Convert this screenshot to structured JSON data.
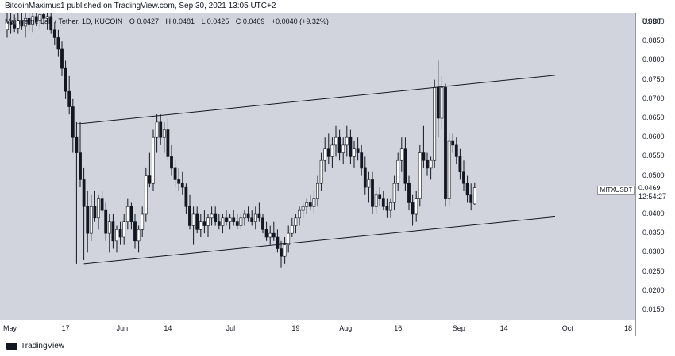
{
  "header": {
    "publish_text": "BitcoinMaximus1 published on TradingView.com, Sep 30, 2021 13:05 UTC+2"
  },
  "legend": {
    "series_title": "Mainframe Lab / Tether, 1D, KUCOIN",
    "open_label": "O",
    "open": "0.0427",
    "high_label": "H",
    "high": "0.0481",
    "low_label": "L",
    "low": "0.0425",
    "close_label": "C",
    "close": "0.0469",
    "change": "+0.0040 (+9.32%)"
  },
  "price_axis": {
    "unit": "USDT",
    "ticks": [
      "0.0900",
      "0.0850",
      "0.0800",
      "0.0750",
      "0.0700",
      "0.0650",
      "0.0600",
      "0.0550",
      "0.0500",
      "0.0450",
      "0.0400",
      "0.0350",
      "0.0300",
      "0.0250",
      "0.0200",
      "0.0150"
    ]
  },
  "time_axis": {
    "ticks": [
      "May",
      "17",
      "Jun",
      "14",
      "Jul",
      "19",
      "Aug",
      "16",
      "Sep",
      "14",
      "Oct",
      "18"
    ]
  },
  "symbol": "MITXUSDT",
  "last_price": {
    "value": "0.0469",
    "countdown": "12:54:27"
  },
  "footer": {
    "brand": "TradingView"
  },
  "colors": {
    "background": "#d1d4dc",
    "candle_up": "#ffffff",
    "candle_down": "#131722",
    "line": "#131722"
  },
  "chart_data": {
    "type": "candlestick",
    "title": "Mainframe Lab / Tether, 1D, KUCOIN",
    "ylabel": "USDT",
    "ylim": [
      0.0125,
      0.0925
    ],
    "x_ticks": [
      {
        "label": "May",
        "day": 0
      },
      {
        "label": "17",
        "day": 16
      },
      {
        "label": "Jun",
        "day": 31
      },
      {
        "label": "14",
        "day": 44
      },
      {
        "label": "Jul",
        "day": 61
      },
      {
        "label": "19",
        "day": 79
      },
      {
        "label": "Aug",
        "day": 92
      },
      {
        "label": "16",
        "day": 107
      },
      {
        "label": "Sep",
        "day": 123
      },
      {
        "label": "14",
        "day": 136
      },
      {
        "label": "Oct",
        "day": 153
      },
      {
        "label": "18",
        "day": 170
      }
    ],
    "candles": [
      [
        0.088,
        0.0925,
        0.086,
        0.09
      ],
      [
        0.09,
        0.0925,
        0.087,
        0.0895
      ],
      [
        0.0895,
        0.092,
        0.0875,
        0.0885
      ],
      [
        0.0885,
        0.0925,
        0.087,
        0.0905
      ],
      [
        0.0905,
        0.0925,
        0.088,
        0.089
      ],
      [
        0.089,
        0.0925,
        0.086,
        0.091
      ],
      [
        0.091,
        0.0925,
        0.088,
        0.0895
      ],
      [
        0.0895,
        0.0925,
        0.0875,
        0.0915
      ],
      [
        0.0915,
        0.0925,
        0.089,
        0.0905
      ],
      [
        0.0905,
        0.0925,
        0.0885,
        0.092
      ],
      [
        0.092,
        0.0925,
        0.0895,
        0.091
      ],
      [
        0.091,
        0.0925,
        0.088,
        0.0915
      ],
      [
        0.0915,
        0.0925,
        0.087,
        0.088
      ],
      [
        0.088,
        0.09,
        0.084,
        0.086
      ],
      [
        0.086,
        0.088,
        0.081,
        0.083
      ],
      [
        0.083,
        0.085,
        0.076,
        0.078
      ],
      [
        0.078,
        0.08,
        0.07,
        0.072
      ],
      [
        0.072,
        0.076,
        0.066,
        0.068
      ],
      [
        0.068,
        0.07,
        0.056,
        0.06
      ],
      [
        0.06,
        0.064,
        0.027,
        0.056
      ],
      [
        0.056,
        0.064,
        0.047,
        0.049
      ],
      [
        0.049,
        0.052,
        0.028,
        0.042
      ],
      [
        0.042,
        0.046,
        0.03,
        0.035
      ],
      [
        0.035,
        0.045,
        0.033,
        0.042
      ],
      [
        0.042,
        0.046,
        0.038,
        0.039
      ],
      [
        0.039,
        0.045,
        0.036,
        0.044
      ],
      [
        0.044,
        0.046,
        0.04,
        0.041
      ],
      [
        0.041,
        0.043,
        0.033,
        0.035
      ],
      [
        0.035,
        0.04,
        0.03,
        0.038
      ],
      [
        0.038,
        0.04,
        0.031,
        0.033
      ],
      [
        0.033,
        0.037,
        0.03,
        0.036
      ],
      [
        0.036,
        0.038,
        0.032,
        0.034
      ],
      [
        0.034,
        0.04,
        0.032,
        0.038
      ],
      [
        0.038,
        0.044,
        0.036,
        0.042
      ],
      [
        0.042,
        0.043,
        0.036,
        0.038
      ],
      [
        0.038,
        0.04,
        0.031,
        0.033
      ],
      [
        0.033,
        0.037,
        0.03,
        0.036
      ],
      [
        0.036,
        0.042,
        0.034,
        0.04
      ],
      [
        0.04,
        0.052,
        0.038,
        0.05
      ],
      [
        0.05,
        0.056,
        0.047,
        0.048
      ],
      [
        0.048,
        0.062,
        0.046,
        0.06
      ],
      [
        0.06,
        0.066,
        0.056,
        0.064
      ],
      [
        0.064,
        0.066,
        0.058,
        0.06
      ],
      [
        0.06,
        0.064,
        0.056,
        0.062
      ],
      [
        0.062,
        0.065,
        0.054,
        0.055
      ],
      [
        0.055,
        0.058,
        0.05,
        0.052
      ],
      [
        0.052,
        0.054,
        0.047,
        0.049
      ],
      [
        0.049,
        0.052,
        0.046,
        0.048
      ],
      [
        0.048,
        0.051,
        0.045,
        0.047
      ],
      [
        0.047,
        0.048,
        0.04,
        0.042
      ],
      [
        0.042,
        0.045,
        0.036,
        0.037
      ],
      [
        0.037,
        0.042,
        0.032,
        0.04
      ],
      [
        0.04,
        0.042,
        0.035,
        0.036
      ],
      [
        0.036,
        0.04,
        0.034,
        0.038
      ],
      [
        0.038,
        0.041,
        0.035,
        0.037
      ],
      [
        0.037,
        0.04,
        0.034,
        0.039
      ],
      [
        0.039,
        0.042,
        0.037,
        0.04
      ],
      [
        0.04,
        0.042,
        0.037,
        0.038
      ],
      [
        0.038,
        0.04,
        0.036,
        0.037
      ],
      [
        0.037,
        0.04,
        0.035,
        0.039
      ],
      [
        0.039,
        0.041,
        0.037,
        0.038
      ],
      [
        0.038,
        0.04,
        0.036,
        0.039
      ],
      [
        0.039,
        0.041,
        0.037,
        0.038
      ],
      [
        0.038,
        0.04,
        0.036,
        0.037
      ],
      [
        0.037,
        0.04,
        0.036,
        0.039
      ],
      [
        0.039,
        0.041,
        0.037,
        0.04
      ],
      [
        0.04,
        0.042,
        0.038,
        0.039
      ],
      [
        0.039,
        0.041,
        0.037,
        0.038
      ],
      [
        0.038,
        0.042,
        0.036,
        0.04
      ],
      [
        0.04,
        0.043,
        0.038,
        0.039
      ],
      [
        0.039,
        0.04,
        0.035,
        0.036
      ],
      [
        0.036,
        0.038,
        0.033,
        0.034
      ],
      [
        0.034,
        0.037,
        0.032,
        0.035
      ],
      [
        0.035,
        0.038,
        0.033,
        0.034
      ],
      [
        0.034,
        0.036,
        0.03,
        0.031
      ],
      [
        0.031,
        0.033,
        0.026,
        0.029
      ],
      [
        0.029,
        0.034,
        0.027,
        0.032
      ],
      [
        0.032,
        0.037,
        0.03,
        0.035
      ],
      [
        0.035,
        0.039,
        0.034,
        0.037
      ],
      [
        0.037,
        0.04,
        0.035,
        0.039
      ],
      [
        0.039,
        0.042,
        0.037,
        0.041
      ],
      [
        0.041,
        0.043,
        0.039,
        0.042
      ],
      [
        0.042,
        0.044,
        0.04,
        0.043
      ],
      [
        0.043,
        0.045,
        0.041,
        0.042
      ],
      [
        0.042,
        0.046,
        0.04,
        0.044
      ],
      [
        0.044,
        0.05,
        0.042,
        0.048
      ],
      [
        0.048,
        0.056,
        0.046,
        0.054
      ],
      [
        0.054,
        0.06,
        0.051,
        0.057
      ],
      [
        0.057,
        0.061,
        0.053,
        0.055
      ],
      [
        0.055,
        0.06,
        0.052,
        0.058
      ],
      [
        0.058,
        0.063,
        0.055,
        0.06
      ],
      [
        0.06,
        0.062,
        0.054,
        0.056
      ],
      [
        0.056,
        0.06,
        0.053,
        0.058
      ],
      [
        0.058,
        0.063,
        0.055,
        0.06
      ],
      [
        0.06,
        0.062,
        0.053,
        0.055
      ],
      [
        0.055,
        0.059,
        0.052,
        0.057
      ],
      [
        0.057,
        0.06,
        0.054,
        0.056
      ],
      [
        0.056,
        0.058,
        0.05,
        0.052
      ],
      [
        0.052,
        0.055,
        0.045,
        0.047
      ],
      [
        0.047,
        0.051,
        0.043,
        0.049
      ],
      [
        0.049,
        0.051,
        0.04,
        0.042
      ],
      [
        0.042,
        0.046,
        0.04,
        0.045
      ],
      [
        0.045,
        0.047,
        0.042,
        0.044
      ],
      [
        0.044,
        0.046,
        0.041,
        0.042
      ],
      [
        0.042,
        0.044,
        0.039,
        0.041
      ],
      [
        0.041,
        0.044,
        0.039,
        0.043
      ],
      [
        0.043,
        0.05,
        0.041,
        0.048
      ],
      [
        0.048,
        0.056,
        0.046,
        0.054
      ],
      [
        0.054,
        0.06,
        0.051,
        0.057
      ],
      [
        0.057,
        0.06,
        0.046,
        0.048
      ],
      [
        0.048,
        0.05,
        0.041,
        0.043
      ],
      [
        0.043,
        0.045,
        0.037,
        0.04
      ],
      [
        0.04,
        0.046,
        0.038,
        0.044
      ],
      [
        0.044,
        0.058,
        0.042,
        0.056
      ],
      [
        0.056,
        0.063,
        0.052,
        0.054
      ],
      [
        0.054,
        0.056,
        0.05,
        0.052
      ],
      [
        0.052,
        0.055,
        0.049,
        0.054
      ],
      [
        0.054,
        0.075,
        0.052,
        0.073
      ],
      [
        0.073,
        0.08,
        0.06,
        0.065
      ],
      [
        0.065,
        0.076,
        0.062,
        0.073
      ],
      [
        0.073,
        0.074,
        0.042,
        0.044
      ],
      [
        0.044,
        0.061,
        0.042,
        0.059
      ],
      [
        0.059,
        0.061,
        0.056,
        0.058
      ],
      [
        0.058,
        0.06,
        0.053,
        0.055
      ],
      [
        0.055,
        0.057,
        0.049,
        0.051
      ],
      [
        0.051,
        0.054,
        0.046,
        0.048
      ],
      [
        0.048,
        0.05,
        0.043,
        0.045
      ],
      [
        0.045,
        0.048,
        0.041,
        0.043
      ],
      [
        0.0427,
        0.0481,
        0.0425,
        0.0469
      ]
    ],
    "trendlines": [
      {
        "points": [
          [
            19,
            0.0635
          ],
          [
            150,
            0.0762
          ]
        ]
      },
      {
        "points": [
          [
            21,
            0.027
          ],
          [
            150,
            0.0393
          ]
        ]
      }
    ]
  }
}
